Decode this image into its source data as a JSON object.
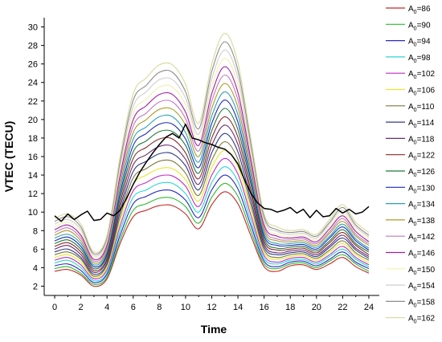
{
  "chart_data": {
    "type": "line",
    "xlabel": "Time",
    "ylabel": "VTEC (TECU)",
    "xlim": [
      -0.8,
      24.8
    ],
    "ylim": [
      1.0,
      31.0
    ],
    "xticks": [
      0,
      2,
      4,
      6,
      8,
      10,
      12,
      14,
      16,
      18,
      20,
      22,
      24
    ],
    "yticks": [
      2,
      4,
      6,
      8,
      10,
      12,
      14,
      16,
      18,
      20,
      22,
      24,
      26,
      28,
      30
    ],
    "legend_position": "right",
    "x": [
      0,
      1,
      2,
      3,
      4,
      5,
      6,
      7,
      8,
      9,
      10,
      11,
      12,
      13,
      14,
      15,
      16,
      17,
      18,
      19,
      20,
      21,
      22,
      23,
      24
    ],
    "series": [
      {
        "name": "A0=86",
        "label_main": "A",
        "label_sub": "0",
        "label_rest": "=86",
        "color": "#c62828",
        "values": [
          3.6,
          3.8,
          3.2,
          2.0,
          2.8,
          6.6,
          9.5,
          10.2,
          10.7,
          10.7,
          9.8,
          8.2,
          10.8,
          12.2,
          10.9,
          7.4,
          4.1,
          3.6,
          4.2,
          4.3,
          3.8,
          4.4,
          5.1,
          4.1,
          3.4
        ]
      },
      {
        "name": "A0=90",
        "label_main": "A",
        "label_sub": "0",
        "label_rest": "=90",
        "color": "#2eb82e",
        "values": [
          3.9,
          4.1,
          3.4,
          2.2,
          3.0,
          7.0,
          10.2,
          10.9,
          11.5,
          11.5,
          10.6,
          8.8,
          11.6,
          13.1,
          11.7,
          7.9,
          4.4,
          3.9,
          4.4,
          4.5,
          4.0,
          4.7,
          5.4,
          4.4,
          3.6
        ]
      },
      {
        "name": "A0=94",
        "label_main": "A",
        "label_sub": "0",
        "label_rest": "=94",
        "color": "#2929c4",
        "values": [
          4.2,
          4.4,
          3.7,
          2.4,
          3.3,
          7.5,
          10.9,
          11.7,
          12.3,
          12.3,
          11.3,
          9.4,
          12.4,
          14.0,
          12.5,
          8.5,
          4.7,
          4.1,
          4.6,
          4.7,
          4.2,
          4.9,
          5.7,
          4.6,
          3.9
        ]
      },
      {
        "name": "A0=98",
        "label_main": "A",
        "label_sub": "0",
        "label_rest": "=98",
        "color": "#29d6d6",
        "values": [
          4.5,
          4.8,
          4.0,
          2.6,
          3.5,
          8.0,
          11.6,
          12.4,
          13.1,
          13.1,
          12.0,
          10.0,
          13.2,
          14.9,
          13.3,
          9.0,
          5.0,
          4.4,
          4.8,
          4.9,
          4.4,
          5.2,
          6.0,
          4.9,
          4.1
        ]
      },
      {
        "name": "A0=102",
        "label_main": "A",
        "label_sub": "0",
        "label_rest": "=102",
        "color": "#c22cc2",
        "values": [
          4.8,
          5.1,
          4.3,
          2.8,
          3.8,
          8.5,
          12.3,
          13.2,
          13.9,
          13.9,
          12.8,
          10.6,
          14.0,
          15.8,
          14.1,
          9.6,
          5.3,
          4.6,
          5.0,
          5.1,
          4.6,
          5.4,
          6.3,
          5.1,
          4.3
        ]
      },
      {
        "name": "A0=106",
        "label_main": "A",
        "label_sub": "0",
        "label_rest": "=106",
        "color": "#e6e62c",
        "values": [
          5.1,
          5.4,
          4.6,
          3.0,
          4.0,
          9.0,
          13.0,
          14.0,
          14.7,
          14.7,
          13.5,
          11.2,
          14.8,
          16.7,
          14.9,
          10.1,
          5.6,
          4.9,
          5.2,
          5.3,
          4.8,
          5.7,
          6.6,
          5.4,
          4.5
        ]
      },
      {
        "name": "A0=110",
        "label_main": "A",
        "label_sub": "0",
        "label_rest": "=110",
        "color": "#7a7a3a",
        "values": [
          5.4,
          5.7,
          4.9,
          3.1,
          4.3,
          9.5,
          13.7,
          14.7,
          15.5,
          15.5,
          14.2,
          11.8,
          15.6,
          17.6,
          15.7,
          10.7,
          5.9,
          5.1,
          5.4,
          5.5,
          5.0,
          5.9,
          6.9,
          5.6,
          4.8
        ]
      },
      {
        "name": "A0=114",
        "label_main": "A",
        "label_sub": "0",
        "label_rest": "=114",
        "color": "#2d3a8c",
        "values": [
          5.7,
          6.0,
          5.1,
          3.3,
          4.5,
          10.0,
          14.4,
          15.5,
          16.3,
          16.3,
          15.0,
          12.4,
          16.4,
          18.5,
          16.5,
          11.2,
          6.2,
          5.4,
          5.6,
          5.7,
          5.2,
          6.2,
          7.2,
          5.9,
          5.0
        ]
      },
      {
        "name": "A0=118",
        "label_main": "A",
        "label_sub": "0",
        "label_rest": "=118",
        "color": "#6b2d6b",
        "values": [
          6.0,
          6.4,
          5.4,
          3.5,
          4.8,
          10.5,
          15.1,
          16.2,
          17.1,
          17.1,
          15.7,
          13.0,
          17.2,
          19.4,
          17.3,
          11.8,
          6.5,
          5.6,
          5.8,
          5.9,
          5.4,
          6.4,
          7.5,
          6.1,
          5.2
        ]
      },
      {
        "name": "A0=122",
        "label_main": "A",
        "label_sub": "0",
        "label_rest": "=122",
        "color": "#8a2a2a",
        "values": [
          6.3,
          6.7,
          5.7,
          3.7,
          5.0,
          11.0,
          15.8,
          17.0,
          17.9,
          17.9,
          16.4,
          13.6,
          18.0,
          20.3,
          18.1,
          12.3,
          6.8,
          5.9,
          6.0,
          6.1,
          5.6,
          6.7,
          7.8,
          6.4,
          5.4
        ]
      },
      {
        "name": "A0=126",
        "label_main": "A",
        "label_sub": "0",
        "label_rest": "=126",
        "color": "#1f7a3a",
        "values": [
          6.6,
          7.0,
          6.0,
          3.9,
          5.3,
          11.5,
          16.5,
          17.7,
          18.7,
          18.7,
          17.2,
          14.2,
          18.8,
          21.2,
          18.9,
          12.9,
          7.1,
          6.1,
          6.2,
          6.3,
          5.8,
          6.9,
          8.1,
          6.6,
          5.7
        ]
      },
      {
        "name": "A0=130",
        "label_main": "A",
        "label_sub": "0",
        "label_rest": "=130",
        "color": "#1c2bb8",
        "values": [
          6.9,
          7.3,
          6.3,
          4.1,
          5.5,
          12.0,
          17.2,
          18.5,
          19.5,
          19.5,
          17.9,
          14.8,
          19.6,
          22.1,
          19.7,
          13.4,
          7.4,
          6.4,
          6.4,
          6.5,
          6.0,
          7.2,
          8.4,
          6.9,
          5.9
        ]
      },
      {
        "name": "A0=134",
        "label_main": "A",
        "label_sub": "0",
        "label_rest": "=134",
        "color": "#2a9fb8",
        "values": [
          7.2,
          7.6,
          6.6,
          4.3,
          5.8,
          12.5,
          17.9,
          19.2,
          20.3,
          20.3,
          18.6,
          15.4,
          20.4,
          23.0,
          20.5,
          14.0,
          7.7,
          6.6,
          6.6,
          6.7,
          6.2,
          7.4,
          8.7,
          7.1,
          6.1
        ]
      },
      {
        "name": "A0=138",
        "label_main": "A",
        "label_sub": "0",
        "label_rest": "=138",
        "color": "#b09a2a",
        "values": [
          7.5,
          8.0,
          6.9,
          4.5,
          6.0,
          13.0,
          18.6,
          20.0,
          21.1,
          21.1,
          19.4,
          16.0,
          21.2,
          23.9,
          21.3,
          14.5,
          8.0,
          6.9,
          6.8,
          6.9,
          6.4,
          7.7,
          9.0,
          7.4,
          6.4
        ]
      },
      {
        "name": "A0=142",
        "label_main": "A",
        "label_sub": "0",
        "label_rest": "=142",
        "color": "#c07ac0",
        "values": [
          7.8,
          8.3,
          7.2,
          4.7,
          6.3,
          13.5,
          19.3,
          20.7,
          21.9,
          21.9,
          20.1,
          16.6,
          22.0,
          24.8,
          22.1,
          15.1,
          8.3,
          7.1,
          7.0,
          7.1,
          6.6,
          7.9,
          9.3,
          7.6,
          6.6
        ]
      },
      {
        "name": "A0=146",
        "label_main": "A",
        "label_sub": "0",
        "label_rest": "=146",
        "color": "#a020a0",
        "values": [
          8.1,
          8.6,
          7.5,
          4.9,
          6.5,
          14.0,
          20.0,
          21.5,
          22.7,
          22.7,
          20.8,
          17.2,
          22.8,
          25.7,
          22.9,
          15.6,
          8.6,
          7.4,
          7.2,
          7.3,
          6.8,
          8.2,
          9.6,
          7.9,
          6.8
        ]
      },
      {
        "name": "A0=150",
        "label_main": "A",
        "label_sub": "0",
        "label_rest": "=150",
        "color": "#f0f0b0",
        "values": [
          8.4,
          8.9,
          7.8,
          5.1,
          6.8,
          14.5,
          20.7,
          22.2,
          23.5,
          23.5,
          21.6,
          17.8,
          23.6,
          26.6,
          23.7,
          16.2,
          8.9,
          7.6,
          7.4,
          7.5,
          7.0,
          8.4,
          9.9,
          8.1,
          7.1
        ]
      },
      {
        "name": "A0=154",
        "label_main": "A",
        "label_sub": "0",
        "label_rest": "=154",
        "color": "#cfcfcf",
        "values": [
          8.7,
          9.2,
          8.1,
          5.3,
          7.0,
          15.0,
          21.4,
          23.0,
          24.3,
          24.3,
          22.3,
          18.4,
          24.4,
          27.5,
          24.5,
          16.7,
          9.2,
          7.9,
          7.6,
          7.7,
          7.2,
          8.7,
          10.2,
          8.4,
          7.3
        ]
      },
      {
        "name": "A0=158",
        "label_main": "A",
        "label_sub": "0",
        "label_rest": "=158",
        "color": "#8c8c8c",
        "values": [
          9.0,
          9.5,
          8.4,
          5.5,
          7.3,
          15.5,
          22.1,
          23.7,
          25.1,
          25.1,
          23.0,
          19.0,
          25.2,
          28.4,
          25.3,
          17.3,
          9.5,
          8.1,
          7.8,
          7.9,
          7.4,
          8.9,
          10.5,
          8.6,
          7.5
        ]
      },
      {
        "name": "A0=162",
        "label_main": "A",
        "label_sub": "0",
        "label_rest": "=162",
        "color": "#d8d89a",
        "values": [
          9.3,
          9.8,
          8.7,
          5.7,
          7.5,
          16.0,
          22.8,
          24.5,
          25.9,
          25.9,
          23.8,
          19.6,
          26.0,
          29.3,
          26.1,
          17.8,
          9.8,
          8.4,
          8.0,
          8.1,
          7.6,
          9.2,
          10.8,
          8.9,
          7.8
        ]
      }
    ],
    "observed": {
      "color": "#000000",
      "x": [
        0,
        0.5,
        1,
        1.5,
        2,
        2.5,
        3,
        3.5,
        4,
        4.5,
        5,
        5.5,
        6,
        6.5,
        7,
        7.5,
        8,
        8.5,
        9,
        9.5,
        10,
        10.5,
        11,
        11.5,
        12,
        12.5,
        13,
        13.5,
        14,
        14.5,
        15,
        15.5,
        16,
        16.5,
        17,
        17.5,
        18,
        18.5,
        19,
        19.5,
        20,
        20.5,
        21,
        21.5,
        22,
        22.5,
        23,
        23.5,
        24
      ],
      "values": [
        9.6,
        9.0,
        9.8,
        9.2,
        9.7,
        10.1,
        9.1,
        9.2,
        9.9,
        9.6,
        10.2,
        11.5,
        13.0,
        14.3,
        15.4,
        16.4,
        17.3,
        18.1,
        18.5,
        18.0,
        19.5,
        18.0,
        17.8,
        17.5,
        17.3,
        17.0,
        16.8,
        16.2,
        15.2,
        13.5,
        12.0,
        11.0,
        10.4,
        10.3,
        10.0,
        10.2,
        10.5,
        9.9,
        10.3,
        9.4,
        10.2,
        9.5,
        9.6,
        10.4,
        9.9,
        10.3,
        9.8,
        10.0,
        10.6
      ]
    }
  }
}
